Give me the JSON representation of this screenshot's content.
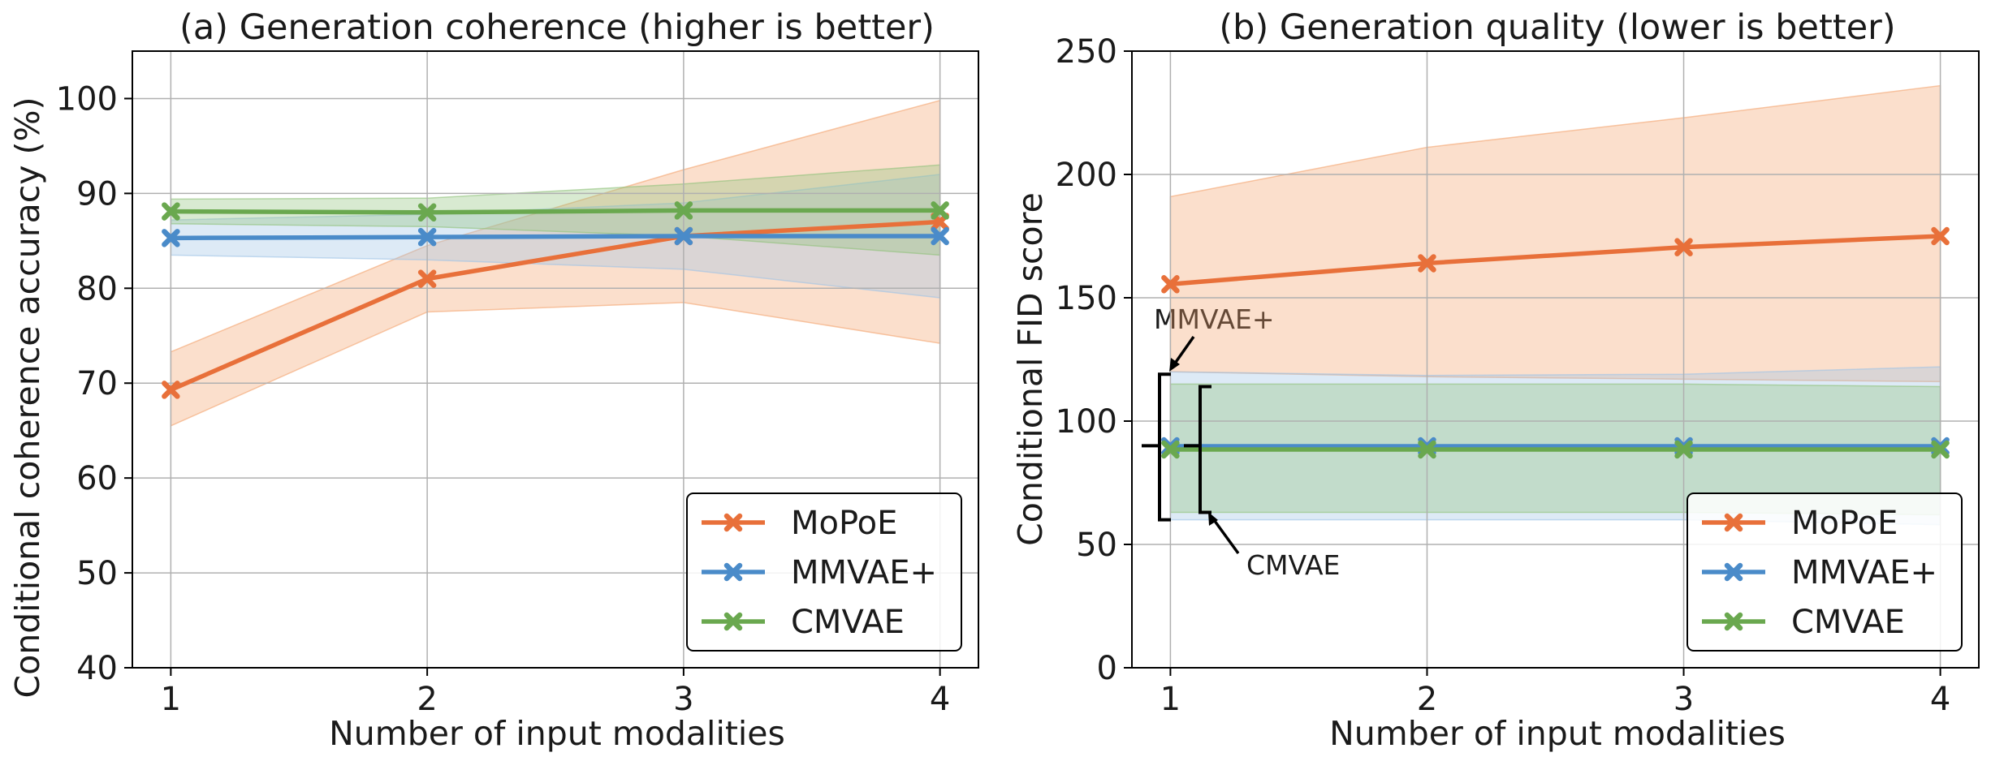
{
  "colors": {
    "mopoe": "#E8703A",
    "mmvae": "#4A8BC9",
    "cmvae": "#6AA84F",
    "mopoe_band": "#F4A36E",
    "mmvae_band": "#9FC3E6",
    "cmvae_band": "#8FC27A",
    "grid": "#b0b0b0",
    "axis": "#000000"
  },
  "chart_data": [
    {
      "type": "line",
      "title": "(a) Generation coherence (higher is better)",
      "xlabel": "Number of input modalities",
      "ylabel": "Conditional coherence accuracy (%)",
      "x": [
        1,
        2,
        3,
        4
      ],
      "xlim": [
        0.85,
        4.15
      ],
      "ylim": [
        40,
        105
      ],
      "xticks": [
        "1",
        "2",
        "3",
        "4"
      ],
      "yticks": [
        "40",
        "50",
        "60",
        "70",
        "80",
        "90",
        "100"
      ],
      "grid": true,
      "legend": "bottom-right",
      "series": [
        {
          "name": "MoPoE",
          "key": "mopoe",
          "values": [
            69.3,
            81.0,
            85.5,
            87.0
          ],
          "lower": [
            65.5,
            77.5,
            78.5,
            74.2
          ],
          "upper": [
            73.3,
            84.5,
            92.5,
            99.8
          ]
        },
        {
          "name": "MMVAE+",
          "key": "mmvae",
          "values": [
            85.3,
            85.4,
            85.5,
            85.5
          ],
          "lower": [
            83.5,
            83.0,
            82.0,
            79.0
          ],
          "upper": [
            87.2,
            87.8,
            89.0,
            92.0
          ]
        },
        {
          "name": "CMVAE",
          "key": "cmvae",
          "values": [
            88.1,
            88.0,
            88.2,
            88.2
          ],
          "lower": [
            86.8,
            86.5,
            85.5,
            83.5
          ],
          "upper": [
            89.4,
            89.5,
            91.0,
            93.0
          ]
        }
      ]
    },
    {
      "type": "line",
      "title": "(b) Generation quality (lower is better)",
      "xlabel": "Number of input modalities",
      "ylabel": "Conditional FID score",
      "x": [
        1,
        2,
        3,
        4
      ],
      "xlim": [
        0.85,
        4.15
      ],
      "ylim": [
        0,
        250
      ],
      "xticks": [
        "1",
        "2",
        "3",
        "4"
      ],
      "yticks": [
        "0",
        "50",
        "100",
        "150",
        "200",
        "250"
      ],
      "grid": true,
      "legend": "bottom-right",
      "annotations": [
        "MMVAE+",
        "CMVAE"
      ],
      "series": [
        {
          "name": "MoPoE",
          "key": "mopoe",
          "values": [
            155.5,
            164.0,
            170.5,
            175.0
          ],
          "lower": [
            120.0,
            118.0,
            117.0,
            116.0
          ],
          "upper": [
            191.0,
            211.0,
            223.0,
            236.0
          ]
        },
        {
          "name": "MMVAE+",
          "key": "mmvae",
          "values": [
            89.8,
            89.8,
            89.8,
            89.8
          ],
          "lower": [
            60.0,
            60.0,
            60.0,
            58.0
          ],
          "upper": [
            120.0,
            118.5,
            119.0,
            122.0
          ]
        },
        {
          "name": "CMVAE",
          "key": "cmvae",
          "values": [
            88.5,
            88.5,
            88.5,
            88.5
          ],
          "lower": [
            63.0,
            63.0,
            63.0,
            62.0
          ],
          "upper": [
            115.0,
            115.0,
            115.0,
            114.0
          ]
        }
      ]
    }
  ]
}
